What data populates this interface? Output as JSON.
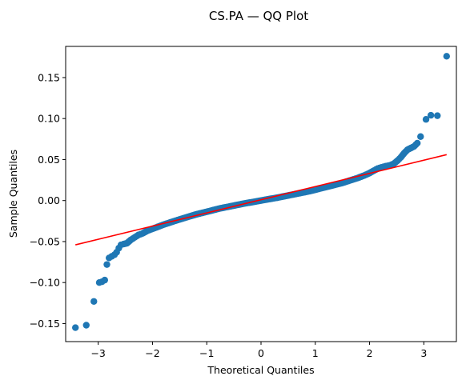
{
  "chart_data": {
    "type": "scatter",
    "title": "CS.PA — QQ Plot",
    "xlabel": "Theoretical Quantiles",
    "ylabel": "Sample Quantiles",
    "xlim": [
      -3.6,
      3.6
    ],
    "ylim": [
      -0.172,
      0.188
    ],
    "x_ticks": [
      -3,
      -2,
      -1,
      0,
      1,
      2,
      3
    ],
    "x_tick_labels": [
      "−3",
      "−2",
      "−1",
      "0",
      "1",
      "2",
      "3"
    ],
    "y_ticks": [
      -0.15,
      -0.1,
      -0.05,
      0.0,
      0.05,
      0.1,
      0.15
    ],
    "y_tick_labels": [
      "−0.15",
      "−0.10",
      "−0.05",
      "0.00",
      "0.05",
      "0.10",
      "0.15"
    ],
    "grid": false,
    "colors": {
      "points": "#1f77b4",
      "line": "#ff0000"
    },
    "series": [
      {
        "kind": "scatter",
        "points": [
          [
            -3.42,
            -0.155
          ],
          [
            -3.22,
            -0.152
          ],
          [
            -3.08,
            -0.123
          ],
          [
            -2.98,
            -0.1
          ],
          [
            -2.93,
            -0.099
          ],
          [
            -2.88,
            -0.097
          ],
          [
            -2.84,
            -0.078
          ],
          [
            -2.8,
            -0.07
          ],
          [
            -2.75,
            -0.068
          ],
          [
            -2.7,
            -0.066
          ],
          [
            -2.66,
            -0.063
          ],
          [
            -2.62,
            -0.058
          ],
          [
            -2.58,
            -0.054
          ],
          [
            -2.53,
            -0.053
          ],
          [
            -2.47,
            -0.052
          ],
          [
            -2.4,
            -0.048
          ],
          [
            -2.33,
            -0.045
          ],
          [
            -2.26,
            -0.042
          ],
          [
            -2.18,
            -0.04
          ],
          [
            -2.1,
            -0.037
          ],
          [
            -2.02,
            -0.035
          ],
          [
            -1.9,
            -0.032
          ],
          [
            -1.78,
            -0.029
          ],
          [
            -1.64,
            -0.026
          ],
          [
            -1.5,
            -0.023
          ],
          [
            -1.35,
            -0.02
          ],
          [
            -1.2,
            -0.017
          ],
          [
            -1.05,
            -0.0145
          ],
          [
            -0.9,
            -0.012
          ],
          [
            -0.75,
            -0.0095
          ],
          [
            -0.6,
            -0.0075
          ],
          [
            -0.45,
            -0.0055
          ],
          [
            -0.3,
            -0.0035
          ],
          [
            -0.15,
            -0.0018
          ],
          [
            0.0,
            0.0
          ],
          [
            0.15,
            0.0018
          ],
          [
            0.3,
            0.0035
          ],
          [
            0.45,
            0.0055
          ],
          [
            0.6,
            0.0075
          ],
          [
            0.75,
            0.0095
          ],
          [
            0.9,
            0.0115
          ],
          [
            1.05,
            0.014
          ],
          [
            1.2,
            0.0165
          ],
          [
            1.35,
            0.019
          ],
          [
            1.5,
            0.0215
          ],
          [
            1.64,
            0.0245
          ],
          [
            1.78,
            0.0275
          ],
          [
            1.9,
            0.0305
          ],
          [
            2.0,
            0.0335
          ],
          [
            2.08,
            0.0365
          ],
          [
            2.15,
            0.039
          ],
          [
            2.22,
            0.0405
          ],
          [
            2.3,
            0.042
          ],
          [
            2.38,
            0.043
          ],
          [
            2.45,
            0.045
          ],
          [
            2.52,
            0.049
          ],
          [
            2.58,
            0.053
          ],
          [
            2.64,
            0.058
          ],
          [
            2.7,
            0.062
          ],
          [
            2.76,
            0.064
          ],
          [
            2.82,
            0.066
          ],
          [
            2.88,
            0.07
          ],
          [
            2.94,
            0.078
          ],
          [
            3.04,
            0.099
          ],
          [
            3.13,
            0.104
          ],
          [
            3.25,
            0.1035
          ],
          [
            3.42,
            0.176
          ]
        ]
      },
      {
        "kind": "line",
        "points": [
          [
            -3.42,
            -0.054
          ],
          [
            3.42,
            0.056
          ]
        ]
      }
    ]
  }
}
